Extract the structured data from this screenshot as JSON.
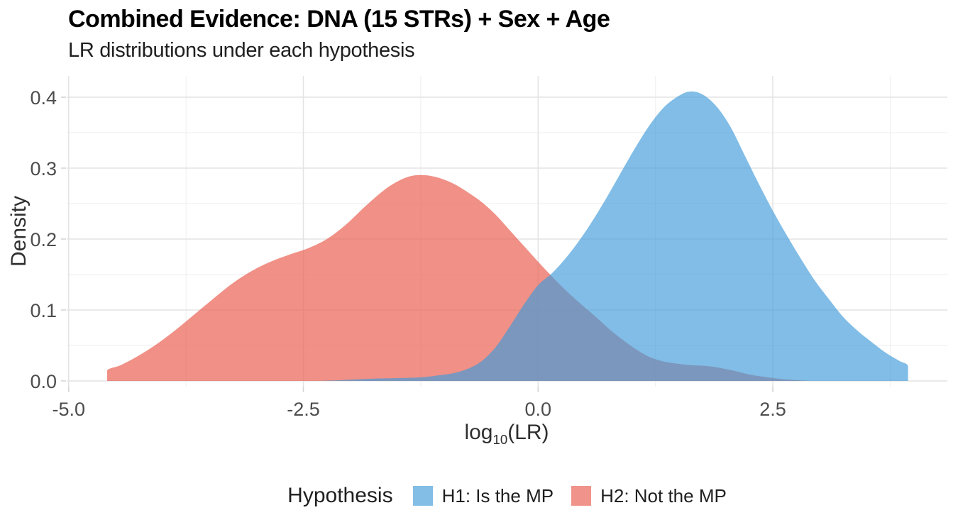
{
  "header": {
    "title": "Combined Evidence: DNA (15 STRs) + Sex + Age",
    "subtitle": "LR distributions under each hypothesis"
  },
  "legend": {
    "title": "Hypothesis",
    "items": [
      {
        "label": "H1: Is the MP",
        "color": "#82BEE6"
      },
      {
        "label": "H2: Not the MP",
        "color": "#F0938A"
      }
    ]
  },
  "colors": {
    "h1_blue_fill": "rgba(63,155,217,0.66)",
    "h2_red_fill": "rgba(234,101,88,0.72)",
    "overlap_observed": "#8096BD",
    "grid_major": "#e4e4e4",
    "grid_minor": "#eeeeee",
    "tick_mark": "#d6d6d6",
    "tick_label": "#4d4d4d",
    "axis_title": "#2f2f2f"
  },
  "chart_data": {
    "type": "area",
    "title": "Combined Evidence: DNA (15 STRs) + Sex + Age",
    "subtitle": "LR distributions under each hypothesis",
    "xlabel": "log10(LR)",
    "xlabel_parts": {
      "prefix": "log",
      "sub": "10",
      "suffix": "(LR)"
    },
    "ylabel": "Density",
    "xlim": [
      -5.03,
      4.37
    ],
    "ylim": [
      0,
      0.43
    ],
    "grid": "on",
    "legend_position": "bottom",
    "x_major_ticks": {
      "values": [
        -5.0,
        -2.5,
        0.0,
        2.5
      ],
      "labels": [
        "-5.0",
        "-2.5",
        "0.0",
        "2.5"
      ]
    },
    "x_minor_ticks": [
      -3.75,
      -1.25,
      1.25,
      3.75
    ],
    "y_major_ticks": {
      "values": [
        0.0,
        0.1,
        0.2,
        0.3,
        0.4
      ],
      "labels": [
        "0.0",
        "0.1",
        "0.2",
        "0.3",
        "0.4"
      ]
    },
    "y_minor_ticks": [
      0.05,
      0.15,
      0.25,
      0.35
    ],
    "series": [
      {
        "name": "H2: Not the MP",
        "hypothesis": "H2",
        "fill": "rgba(234,101,88,0.72)",
        "swatch": "#F0938A",
        "peak": {
          "x": -1.3,
          "density": 0.29
        },
        "points": [
          [
            -4.59,
            0
          ],
          [
            -4.59,
            0.015
          ],
          [
            -4.45,
            0.022
          ],
          [
            -4.25,
            0.036
          ],
          [
            -4.05,
            0.053
          ],
          [
            -3.85,
            0.073
          ],
          [
            -3.65,
            0.095
          ],
          [
            -3.45,
            0.117
          ],
          [
            -3.25,
            0.138
          ],
          [
            -3.05,
            0.155
          ],
          [
            -2.85,
            0.168
          ],
          [
            -2.65,
            0.178
          ],
          [
            -2.45,
            0.187
          ],
          [
            -2.25,
            0.2
          ],
          [
            -2.05,
            0.22
          ],
          [
            -1.85,
            0.245
          ],
          [
            -1.65,
            0.268
          ],
          [
            -1.5,
            0.281
          ],
          [
            -1.35,
            0.289
          ],
          [
            -1.2,
            0.29
          ],
          [
            -1.05,
            0.286
          ],
          [
            -0.9,
            0.278
          ],
          [
            -0.75,
            0.266
          ],
          [
            -0.6,
            0.252
          ],
          [
            -0.45,
            0.234
          ],
          [
            -0.3,
            0.212
          ],
          [
            -0.15,
            0.19
          ],
          [
            0,
            0.168
          ],
          [
            0.15,
            0.147
          ],
          [
            0.3,
            0.127
          ],
          [
            0.45,
            0.109
          ],
          [
            0.6,
            0.092
          ],
          [
            0.75,
            0.074
          ],
          [
            0.9,
            0.058
          ],
          [
            1.05,
            0.044
          ],
          [
            1.2,
            0.033
          ],
          [
            1.35,
            0.027
          ],
          [
            1.5,
            0.024
          ],
          [
            1.65,
            0.022
          ],
          [
            1.8,
            0.021
          ],
          [
            1.95,
            0.018
          ],
          [
            2.1,
            0.014
          ],
          [
            2.25,
            0.009
          ],
          [
            2.45,
            0.005
          ],
          [
            2.65,
            0.002
          ],
          [
            2.9,
            0
          ]
        ]
      },
      {
        "name": "H1: Is the MP",
        "hypothesis": "H1",
        "fill": "rgba(63,155,217,0.66)",
        "swatch": "#82BEE6",
        "peak": {
          "x": 1.62,
          "density": 0.408
        },
        "points": [
          [
            -2.35,
            0
          ],
          [
            -2.1,
            0.001
          ],
          [
            -1.8,
            0.003
          ],
          [
            -1.5,
            0.004
          ],
          [
            -1.25,
            0.005
          ],
          [
            -1.05,
            0.008
          ],
          [
            -0.9,
            0.011
          ],
          [
            -0.75,
            0.017
          ],
          [
            -0.6,
            0.028
          ],
          [
            -0.45,
            0.048
          ],
          [
            -0.3,
            0.077
          ],
          [
            -0.15,
            0.108
          ],
          [
            0,
            0.135
          ],
          [
            0.15,
            0.152
          ],
          [
            0.3,
            0.174
          ],
          [
            0.45,
            0.2
          ],
          [
            0.6,
            0.23
          ],
          [
            0.75,
            0.263
          ],
          [
            0.9,
            0.298
          ],
          [
            1.05,
            0.332
          ],
          [
            1.2,
            0.363
          ],
          [
            1.35,
            0.387
          ],
          [
            1.5,
            0.402
          ],
          [
            1.62,
            0.408
          ],
          [
            1.75,
            0.404
          ],
          [
            1.9,
            0.387
          ],
          [
            2.05,
            0.358
          ],
          [
            2.2,
            0.318
          ],
          [
            2.35,
            0.278
          ],
          [
            2.5,
            0.24
          ],
          [
            2.65,
            0.205
          ],
          [
            2.8,
            0.172
          ],
          [
            2.95,
            0.141
          ],
          [
            3.1,
            0.115
          ],
          [
            3.25,
            0.09
          ],
          [
            3.4,
            0.071
          ],
          [
            3.55,
            0.055
          ],
          [
            3.7,
            0.04
          ],
          [
            3.85,
            0.028
          ],
          [
            3.94,
            0.021
          ],
          [
            3.94,
            0
          ]
        ]
      }
    ]
  }
}
